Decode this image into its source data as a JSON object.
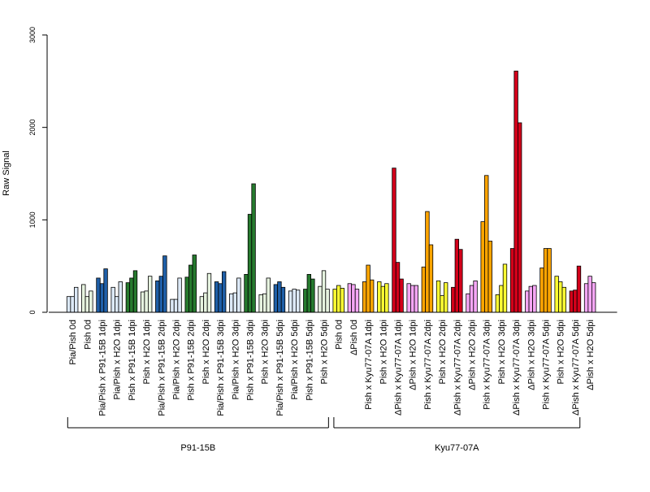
{
  "chart_data": {
    "type": "bar",
    "ylabel": "Raw Signal",
    "xlabel": "",
    "ylim": [
      0,
      3000
    ],
    "y_ticks": [
      "0",
      "1000",
      "2000",
      "3000"
    ],
    "grid": false,
    "colors": {
      "light_blue": "#dce9f7",
      "pale_green": "#e6f3df",
      "dark_blue": "#1f5fa8",
      "dark_green": "#267a2e",
      "yellow": "#ffff33",
      "pink": "#f5a6f5",
      "orange": "#ffa500",
      "red": "#d4001a"
    },
    "groups": [
      {
        "label": "P91-15B",
        "first": 0,
        "last": 17
      },
      {
        "label": "Kyu77-07A",
        "first": 18,
        "last": 34
      }
    ],
    "categories": [
      {
        "label": "Pia/Pish 0d",
        "color": "light_blue",
        "values": [
          170,
          170,
          270
        ]
      },
      {
        "label": "Pish 0d",
        "color": "pale_green",
        "values": [
          300,
          170,
          230
        ]
      },
      {
        "label": "Pia/Pish x P91-15B 1dpi",
        "color": "dark_blue",
        "values": [
          370,
          310,
          470
        ]
      },
      {
        "label": "Pia/Pish x H2O 1dpi",
        "color": "light_blue",
        "values": [
          270,
          170,
          330
        ]
      },
      {
        "label": "Pish x P91-15B 1dpi",
        "color": "dark_green",
        "values": [
          320,
          370,
          450
        ]
      },
      {
        "label": "Pish x H2O 1dpi",
        "color": "pale_green",
        "values": [
          220,
          230,
          390
        ]
      },
      {
        "label": "Pia/Pish x P91-15B 2dpi",
        "color": "dark_blue",
        "values": [
          340,
          390,
          610
        ]
      },
      {
        "label": "Pia/Pish x H2O 2dpi",
        "color": "light_blue",
        "values": [
          140,
          140,
          370
        ]
      },
      {
        "label": "Pish x P91-15B 2dpi",
        "color": "dark_green",
        "values": [
          380,
          510,
          620
        ]
      },
      {
        "label": "Pish x H2O 2dpi",
        "color": "pale_green",
        "values": [
          170,
          210,
          420
        ]
      },
      {
        "label": "Pia/Pish x P91-15B 3dpi",
        "color": "dark_blue",
        "values": [
          330,
          310,
          440
        ]
      },
      {
        "label": "Pia/Pish x H2O 3dpi",
        "color": "light_blue",
        "values": [
          200,
          210,
          370
        ]
      },
      {
        "label": "Pish x P91-15B 3dpi",
        "color": "dark_green",
        "values": [
          410,
          1060,
          1390
        ]
      },
      {
        "label": "Pish x H2O 3dpi",
        "color": "pale_green",
        "values": [
          190,
          200,
          370
        ]
      },
      {
        "label": "Pia/Pish x P91-15B 5dpi",
        "color": "dark_blue",
        "values": [
          300,
          330,
          270
        ]
      },
      {
        "label": "Pia/Pish x H2O 5dpi",
        "color": "light_blue",
        "values": [
          230,
          250,
          240
        ]
      },
      {
        "label": "Pish x P91-15B 5dpi",
        "color": "dark_green",
        "values": [
          250,
          410,
          360
        ]
      },
      {
        "label": "Pish x H2O 5dpi",
        "color": "pale_green",
        "values": [
          280,
          450,
          250
        ]
      },
      {
        "label": "Pish 0d",
        "color": "yellow",
        "values": [
          250,
          290,
          260
        ]
      },
      {
        "label": "ΔPish 0d",
        "color": "pink",
        "values": [
          310,
          300,
          250
        ]
      },
      {
        "label": "Pish x Kyu77-07A 1dpi",
        "color": "orange",
        "values": [
          330,
          510,
          350
        ]
      },
      {
        "label": "Pish x H2O 1dpi",
        "color": "yellow",
        "values": [
          330,
          280,
          310
        ]
      },
      {
        "label": "ΔPish x Kyu77-07A 1dpi",
        "color": "red",
        "values": [
          1560,
          540,
          360
        ]
      },
      {
        "label": "ΔPish x H2O 1dpi",
        "color": "pink",
        "values": [
          310,
          290,
          290
        ]
      },
      {
        "label": "Pish x Kyu77-07A 2dpi",
        "color": "orange",
        "values": [
          490,
          1090,
          730
        ]
      },
      {
        "label": "Pish x H2O 2dpi",
        "color": "yellow",
        "values": [
          340,
          180,
          320
        ]
      },
      {
        "label": "ΔPish x Kyu77-07A 2dpi",
        "color": "red",
        "values": [
          270,
          790,
          680
        ]
      },
      {
        "label": "ΔPish x H2O 2dpi",
        "color": "pink",
        "values": [
          200,
          290,
          340
        ]
      },
      {
        "label": "Pish x Kyu77-07A 3dpi",
        "color": "orange",
        "values": [
          980,
          1480,
          770
        ]
      },
      {
        "label": "Pish x H2O 3dpi",
        "color": "yellow",
        "values": [
          190,
          290,
          520
        ]
      },
      {
        "label": "ΔPish x Kyu77-07A 3dpi",
        "color": "red",
        "values": [
          690,
          2610,
          2050
        ]
      },
      {
        "label": "ΔPish x H2O 3dpi",
        "color": "pink",
        "values": [
          230,
          280,
          290
        ]
      },
      {
        "label": "Pish x Kyu77-07A 5dpi",
        "color": "orange",
        "values": [
          480,
          690,
          690
        ]
      },
      {
        "label": "Pish x H2O 5dpi",
        "color": "yellow",
        "values": [
          390,
          330,
          270
        ]
      },
      {
        "label": "ΔPish x Kyu77-07A 5dpi",
        "color": "red",
        "values": [
          230,
          240,
          500
        ]
      },
      {
        "label": "ΔPish x H2O 5dpi",
        "color": "pink",
        "values": [
          310,
          390,
          320
        ]
      }
    ]
  }
}
